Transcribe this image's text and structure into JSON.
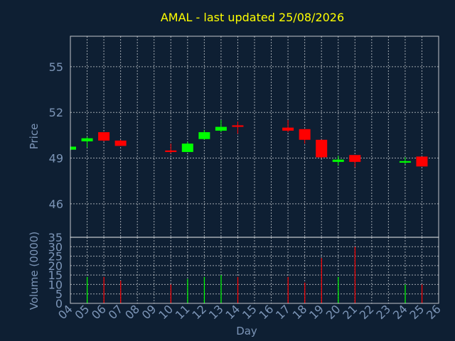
{
  "chart_data": [
    {
      "type": "candlestick",
      "title": "AMAL - last updated 25/08/2026",
      "ylabel": "Price",
      "ylim": [
        43.8,
        57
      ],
      "yticks": [
        46,
        49,
        52,
        55
      ],
      "grid": true,
      "colors": {
        "up": "#00ff00",
        "down": "#ff0000"
      },
      "candles": [
        {
          "day": 4,
          "open": 49.55,
          "high": 49.75,
          "low": 49.5,
          "close": 49.75
        },
        {
          "day": 5,
          "open": 50.1,
          "high": 50.4,
          "low": 49.7,
          "close": 50.3
        },
        {
          "day": 6,
          "open": 50.7,
          "high": 50.7,
          "low": 50.1,
          "close": 50.15
        },
        {
          "day": 7,
          "open": 50.15,
          "high": 50.2,
          "low": 49.8,
          "close": 49.8
        },
        {
          "day": 10,
          "open": 49.5,
          "high": 49.95,
          "low": 49.3,
          "close": 49.4
        },
        {
          "day": 11,
          "open": 49.4,
          "high": 50.05,
          "low": 49.4,
          "close": 49.95
        },
        {
          "day": 12,
          "open": 50.25,
          "high": 50.85,
          "low": 50.2,
          "close": 50.7
        },
        {
          "day": 13,
          "open": 50.8,
          "high": 51.5,
          "low": 50.7,
          "close": 51.05
        },
        {
          "day": 14,
          "open": 51.15,
          "high": 51.4,
          "low": 50.6,
          "close": 51.05
        },
        {
          "day": 17,
          "open": 51.0,
          "high": 51.5,
          "low": 50.7,
          "close": 50.8
        },
        {
          "day": 18,
          "open": 50.9,
          "high": 50.9,
          "low": 49.95,
          "close": 50.2
        },
        {
          "day": 19,
          "open": 50.2,
          "high": 50.2,
          "low": 49.0,
          "close": 49.05
        },
        {
          "day": 20,
          "open": 48.75,
          "high": 49.15,
          "low": 48.5,
          "close": 48.9
        },
        {
          "day": 21,
          "open": 49.2,
          "high": 49.2,
          "low": 48.4,
          "close": 48.75
        },
        {
          "day": 24,
          "open": 48.7,
          "high": 49.05,
          "low": 48.6,
          "close": 48.8
        },
        {
          "day": 25,
          "open": 49.1,
          "high": 49.1,
          "low": 48.45,
          "close": 48.45
        }
      ]
    },
    {
      "type": "bar",
      "ylabel": "Volume (0000)",
      "xlabel": "Day",
      "ylim": [
        0,
        35
      ],
      "yticks": [
        0,
        5,
        10,
        15,
        20,
        25,
        30,
        35
      ],
      "grid": true,
      "categories": [
        "04",
        "05",
        "06",
        "07",
        "08",
        "09",
        "10",
        "11",
        "12",
        "13",
        "14",
        "15",
        "16",
        "17",
        "18",
        "19",
        "20",
        "21",
        "22",
        "23",
        "24",
        "25",
        "26"
      ],
      "x": [
        5,
        6,
        7,
        10,
        11,
        12,
        13,
        14,
        17,
        18,
        19,
        20,
        21,
        24,
        25
      ],
      "values": [
        14,
        14,
        12,
        10,
        13,
        14,
        15,
        14,
        14,
        11,
        24,
        14,
        30,
        10,
        10
      ],
      "direction": [
        "up",
        "down",
        "down",
        "down",
        "up",
        "up",
        "up",
        "down",
        "down",
        "down",
        "down",
        "up",
        "down",
        "up",
        "down"
      ]
    }
  ]
}
